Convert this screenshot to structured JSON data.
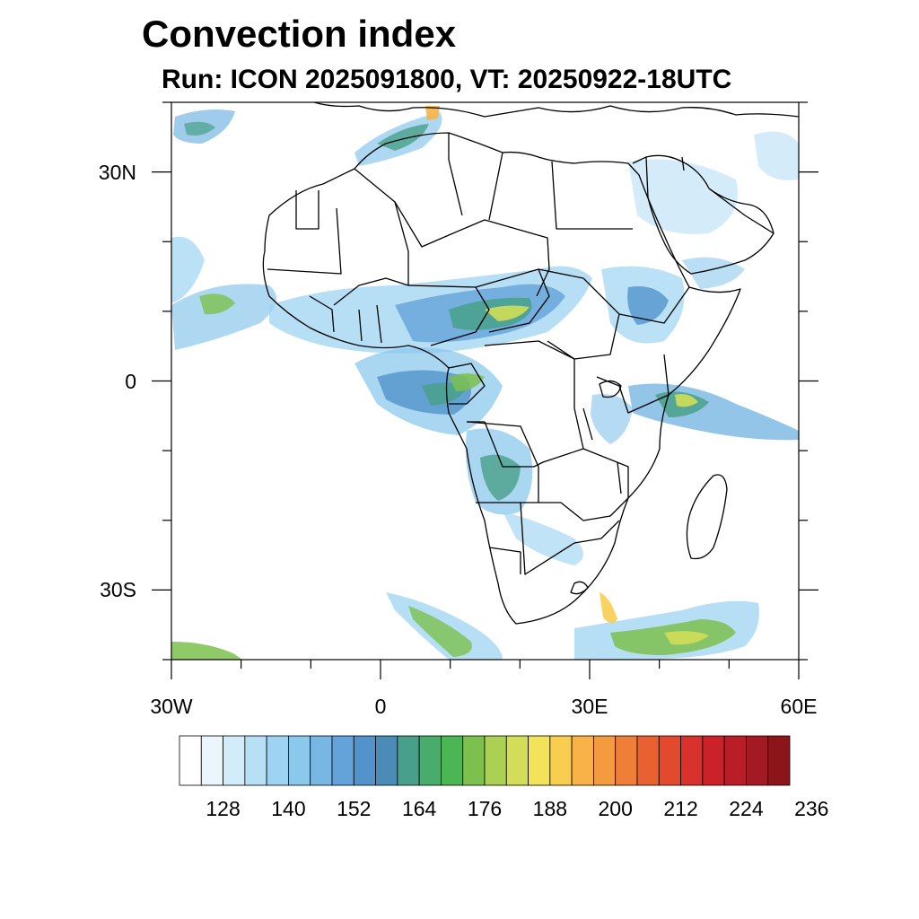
{
  "header": {
    "title": "Convection index",
    "subtitle": "Run: ICON 2025091800,  VT: 20250922-18UTC"
  },
  "axes": {
    "lon_ticks": [
      {
        "value": -30,
        "label": "30W"
      },
      {
        "value": 0,
        "label": "0"
      },
      {
        "value": 30,
        "label": "30E"
      },
      {
        "value": 60,
        "label": "60E"
      }
    ],
    "lat_ticks": [
      {
        "value": 30,
        "label": "30N"
      },
      {
        "value": 0,
        "label": "0"
      },
      {
        "value": -30,
        "label": "30S"
      }
    ],
    "lon_range": [
      -30,
      60
    ],
    "lat_range": [
      -40,
      40
    ]
  },
  "colorbar": {
    "labels": [
      "128",
      "140",
      "152",
      "164",
      "176",
      "188",
      "200",
      "212",
      "224",
      "236"
    ],
    "colors": [
      "#ffffff",
      "#eaf5fc",
      "#d2ecf9",
      "#b8e0f5",
      "#9ed4f2",
      "#8cc8ec",
      "#78b6e4",
      "#64a3da",
      "#5393cc",
      "#4a8cb5",
      "#48a08a",
      "#47ac6c",
      "#4cb654",
      "#7dc04e",
      "#acd054",
      "#d2de58",
      "#f2e35a",
      "#f9cd4f",
      "#f8b247",
      "#f49a3f",
      "#ef7e38",
      "#e96131",
      "#e34a2d",
      "#d9322c",
      "#cb222a",
      "#b81d28",
      "#a41a24",
      "#8c1519"
    ]
  }
}
